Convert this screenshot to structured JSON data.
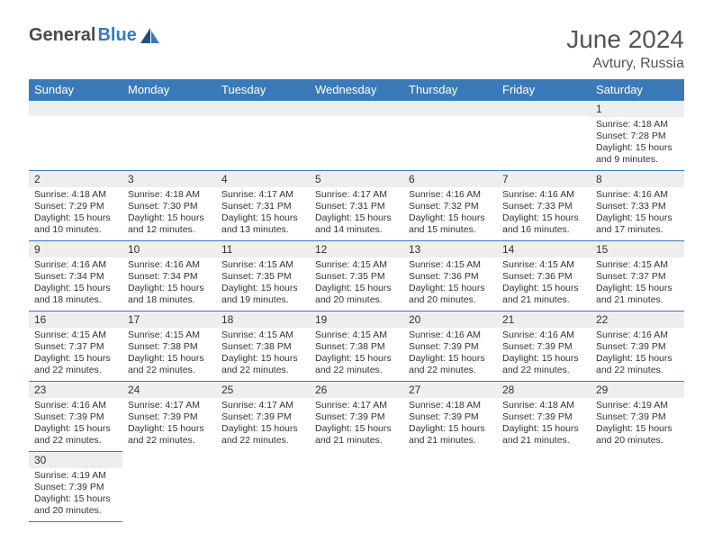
{
  "brand": {
    "part1": "General",
    "part2": "Blue"
  },
  "header": {
    "month_year": "June 2024",
    "location": "Avtury, Russia"
  },
  "colors": {
    "header_bg": "#3a7ab8",
    "header_text": "#ffffff",
    "daynum_bg": "#eeeeee",
    "border": "#3a7ab8",
    "text": "#333333",
    "title_text": "#555555"
  },
  "weekdays": [
    "Sunday",
    "Monday",
    "Tuesday",
    "Wednesday",
    "Thursday",
    "Friday",
    "Saturday"
  ],
  "layout": {
    "first_weekday_index": 6,
    "days_in_month": 30
  },
  "days": {
    "1": {
      "sunrise": "4:18 AM",
      "sunset": "7:28 PM",
      "daylight": "15 hours and 9 minutes."
    },
    "2": {
      "sunrise": "4:18 AM",
      "sunset": "7:29 PM",
      "daylight": "15 hours and 10 minutes."
    },
    "3": {
      "sunrise": "4:18 AM",
      "sunset": "7:30 PM",
      "daylight": "15 hours and 12 minutes."
    },
    "4": {
      "sunrise": "4:17 AM",
      "sunset": "7:31 PM",
      "daylight": "15 hours and 13 minutes."
    },
    "5": {
      "sunrise": "4:17 AM",
      "sunset": "7:31 PM",
      "daylight": "15 hours and 14 minutes."
    },
    "6": {
      "sunrise": "4:16 AM",
      "sunset": "7:32 PM",
      "daylight": "15 hours and 15 minutes."
    },
    "7": {
      "sunrise": "4:16 AM",
      "sunset": "7:33 PM",
      "daylight": "15 hours and 16 minutes."
    },
    "8": {
      "sunrise": "4:16 AM",
      "sunset": "7:33 PM",
      "daylight": "15 hours and 17 minutes."
    },
    "9": {
      "sunrise": "4:16 AM",
      "sunset": "7:34 PM",
      "daylight": "15 hours and 18 minutes."
    },
    "10": {
      "sunrise": "4:16 AM",
      "sunset": "7:34 PM",
      "daylight": "15 hours and 18 minutes."
    },
    "11": {
      "sunrise": "4:15 AM",
      "sunset": "7:35 PM",
      "daylight": "15 hours and 19 minutes."
    },
    "12": {
      "sunrise": "4:15 AM",
      "sunset": "7:35 PM",
      "daylight": "15 hours and 20 minutes."
    },
    "13": {
      "sunrise": "4:15 AM",
      "sunset": "7:36 PM",
      "daylight": "15 hours and 20 minutes."
    },
    "14": {
      "sunrise": "4:15 AM",
      "sunset": "7:36 PM",
      "daylight": "15 hours and 21 minutes."
    },
    "15": {
      "sunrise": "4:15 AM",
      "sunset": "7:37 PM",
      "daylight": "15 hours and 21 minutes."
    },
    "16": {
      "sunrise": "4:15 AM",
      "sunset": "7:37 PM",
      "daylight": "15 hours and 22 minutes."
    },
    "17": {
      "sunrise": "4:15 AM",
      "sunset": "7:38 PM",
      "daylight": "15 hours and 22 minutes."
    },
    "18": {
      "sunrise": "4:15 AM",
      "sunset": "7:38 PM",
      "daylight": "15 hours and 22 minutes."
    },
    "19": {
      "sunrise": "4:15 AM",
      "sunset": "7:38 PM",
      "daylight": "15 hours and 22 minutes."
    },
    "20": {
      "sunrise": "4:16 AM",
      "sunset": "7:39 PM",
      "daylight": "15 hours and 22 minutes."
    },
    "21": {
      "sunrise": "4:16 AM",
      "sunset": "7:39 PM",
      "daylight": "15 hours and 22 minutes."
    },
    "22": {
      "sunrise": "4:16 AM",
      "sunset": "7:39 PM",
      "daylight": "15 hours and 22 minutes."
    },
    "23": {
      "sunrise": "4:16 AM",
      "sunset": "7:39 PM",
      "daylight": "15 hours and 22 minutes."
    },
    "24": {
      "sunrise": "4:17 AM",
      "sunset": "7:39 PM",
      "daylight": "15 hours and 22 minutes."
    },
    "25": {
      "sunrise": "4:17 AM",
      "sunset": "7:39 PM",
      "daylight": "15 hours and 22 minutes."
    },
    "26": {
      "sunrise": "4:17 AM",
      "sunset": "7:39 PM",
      "daylight": "15 hours and 21 minutes."
    },
    "27": {
      "sunrise": "4:18 AM",
      "sunset": "7:39 PM",
      "daylight": "15 hours and 21 minutes."
    },
    "28": {
      "sunrise": "4:18 AM",
      "sunset": "7:39 PM",
      "daylight": "15 hours and 21 minutes."
    },
    "29": {
      "sunrise": "4:19 AM",
      "sunset": "7:39 PM",
      "daylight": "15 hours and 20 minutes."
    },
    "30": {
      "sunrise": "4:19 AM",
      "sunset": "7:39 PM",
      "daylight": "15 hours and 20 minutes."
    }
  },
  "labels": {
    "sunrise": "Sunrise:",
    "sunset": "Sunset:",
    "daylight": "Daylight:"
  }
}
